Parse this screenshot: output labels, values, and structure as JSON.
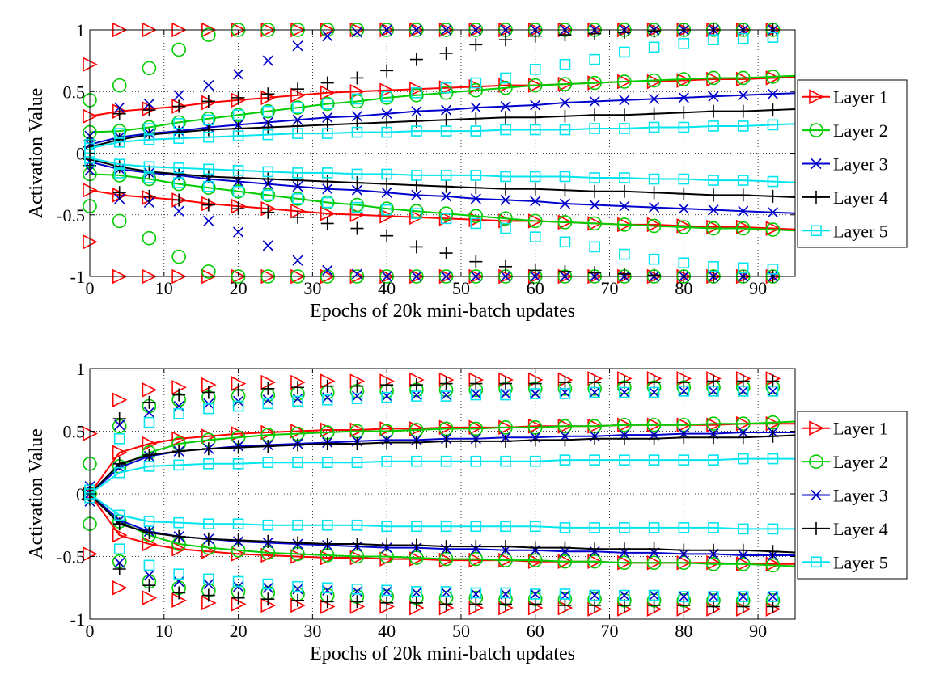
{
  "chart_data": [
    {
      "type": "line",
      "title": "",
      "xlabel": "Epochs of 20k mini-batch updates",
      "ylabel": "Activation Value",
      "xlim": [
        0,
        95
      ],
      "ylim": [
        -1,
        1
      ],
      "xticks": [
        "0",
        "10",
        "20",
        "30",
        "40",
        "50",
        "60",
        "70",
        "80",
        "90"
      ],
      "yticks": [
        "-1",
        "-0.5",
        "0",
        "0.5",
        "1"
      ],
      "grid": true,
      "legend_position": "right",
      "x": [
        0,
        4,
        8,
        12,
        16,
        20,
        24,
        28,
        32,
        36,
        40,
        44,
        48,
        52,
        56,
        60,
        64,
        68,
        72,
        76,
        80,
        84,
        88,
        92
      ],
      "series": [
        {
          "name": "Layer 1",
          "color": "#ff0000",
          "marker": "triangle-right",
          "mean": [
            0.3,
            0.34,
            0.36,
            0.38,
            0.41,
            0.43,
            0.45,
            0.47,
            0.49,
            0.5,
            0.51,
            0.52,
            0.53,
            0.54,
            0.55,
            0.55,
            0.56,
            0.57,
            0.58,
            0.58,
            0.59,
            0.6,
            0.6,
            0.61
          ],
          "p98": [
            0.72,
            1,
            1,
            1,
            1,
            1,
            1,
            1,
            1,
            1,
            1,
            1,
            1,
            1,
            1,
            1,
            1,
            1,
            1,
            1,
            1,
            1,
            1,
            1
          ]
        },
        {
          "name": "Layer 2",
          "color": "#00cc00",
          "marker": "circle",
          "mean": [
            0.17,
            0.18,
            0.21,
            0.25,
            0.28,
            0.31,
            0.34,
            0.37,
            0.4,
            0.42,
            0.45,
            0.47,
            0.49,
            0.51,
            0.53,
            0.55,
            0.56,
            0.57,
            0.58,
            0.59,
            0.6,
            0.61,
            0.61,
            0.62
          ],
          "p98": [
            0.43,
            0.55,
            0.69,
            0.84,
            0.96,
            1,
            1,
            1,
            1,
            1,
            1,
            1,
            1,
            1,
            1,
            1,
            1,
            1,
            1,
            1,
            1,
            1,
            1,
            1
          ]
        },
        {
          "name": "Layer 3",
          "color": "#0000cc",
          "marker": "x",
          "mean": [
            0.07,
            0.13,
            0.16,
            0.18,
            0.21,
            0.23,
            0.25,
            0.27,
            0.29,
            0.3,
            0.32,
            0.34,
            0.35,
            0.37,
            0.38,
            0.39,
            0.41,
            0.42,
            0.43,
            0.44,
            0.45,
            0.46,
            0.47,
            0.48
          ],
          "p98": [
            0.14,
            0.37,
            0.4,
            0.47,
            0.55,
            0.64,
            0.75,
            0.87,
            0.95,
            0.98,
            1,
            1,
            1,
            1,
            1,
            1,
            1,
            1,
            1,
            1,
            1,
            1,
            1,
            1
          ]
        },
        {
          "name": "Layer 4",
          "color": "#000000",
          "marker": "plus",
          "mean": [
            0.05,
            0.11,
            0.15,
            0.17,
            0.19,
            0.2,
            0.21,
            0.22,
            0.23,
            0.24,
            0.25,
            0.26,
            0.27,
            0.28,
            0.29,
            0.29,
            0.3,
            0.31,
            0.31,
            0.32,
            0.33,
            0.34,
            0.34,
            0.35
          ],
          "p98": [
            0.1,
            0.32,
            0.35,
            0.38,
            0.42,
            0.45,
            0.48,
            0.52,
            0.57,
            0.61,
            0.67,
            0.76,
            0.81,
            0.88,
            0.92,
            0.95,
            0.96,
            0.97,
            0.98,
            0.99,
            1,
            1,
            1,
            1
          ]
        },
        {
          "name": "Layer 5",
          "color": "#00e5ee",
          "marker": "square",
          "mean": [
            0.04,
            0.09,
            0.11,
            0.12,
            0.13,
            0.14,
            0.15,
            0.16,
            0.16,
            0.17,
            0.17,
            0.18,
            0.18,
            0.18,
            0.19,
            0.19,
            0.19,
            0.2,
            0.2,
            0.21,
            0.21,
            0.22,
            0.22,
            0.23
          ],
          "p98": [
            0.07,
            0.16,
            0.2,
            0.24,
            0.27,
            0.31,
            0.34,
            0.37,
            0.4,
            0.44,
            0.46,
            0.49,
            0.53,
            0.57,
            0.61,
            0.68,
            0.72,
            0.76,
            0.82,
            0.86,
            0.89,
            0.92,
            0.93,
            0.94
          ]
        }
      ]
    },
    {
      "type": "line",
      "title": "",
      "xlabel": "Epochs of 20k mini-batch updates",
      "ylabel": "Activation Value",
      "xlim": [
        0,
        95
      ],
      "ylim": [
        -1,
        1
      ],
      "xticks": [
        "0",
        "10",
        "20",
        "30",
        "40",
        "50",
        "60",
        "70",
        "80",
        "90"
      ],
      "yticks": [
        "-1",
        "-0.5",
        "0",
        "0.5",
        "1"
      ],
      "grid": true,
      "legend_position": "right",
      "x": [
        0,
        4,
        8,
        12,
        16,
        20,
        24,
        28,
        32,
        36,
        40,
        44,
        48,
        52,
        56,
        60,
        64,
        68,
        72,
        76,
        80,
        84,
        88,
        92
      ],
      "series": [
        {
          "name": "Layer 1",
          "color": "#ff0000",
          "marker": "triangle-right",
          "mean": [
            0.0,
            0.33,
            0.4,
            0.44,
            0.46,
            0.48,
            0.49,
            0.5,
            0.51,
            0.51,
            0.52,
            0.52,
            0.53,
            0.53,
            0.53,
            0.54,
            0.54,
            0.54,
            0.55,
            0.55,
            0.55,
            0.55,
            0.56,
            0.56
          ],
          "p98": [
            0.48,
            0.75,
            0.83,
            0.85,
            0.87,
            0.88,
            0.89,
            0.89,
            0.9,
            0.9,
            0.9,
            0.91,
            0.91,
            0.91,
            0.91,
            0.91,
            0.91,
            0.92,
            0.92,
            0.92,
            0.92,
            0.92,
            0.92,
            0.92
          ]
        },
        {
          "name": "Layer 2",
          "color": "#00cc00",
          "marker": "circle",
          "mean": [
            0.0,
            0.22,
            0.33,
            0.4,
            0.43,
            0.45,
            0.47,
            0.48,
            0.49,
            0.5,
            0.5,
            0.51,
            0.52,
            0.52,
            0.53,
            0.53,
            0.54,
            0.54,
            0.55,
            0.55,
            0.55,
            0.56,
            0.56,
            0.57
          ],
          "p98": [
            0.24,
            0.54,
            0.7,
            0.75,
            0.77,
            0.78,
            0.79,
            0.8,
            0.81,
            0.82,
            0.82,
            0.83,
            0.83,
            0.83,
            0.84,
            0.84,
            0.84,
            0.84,
            0.85,
            0.85,
            0.85,
            0.85,
            0.85,
            0.85
          ]
        },
        {
          "name": "Layer 3",
          "color": "#0000cc",
          "marker": "x",
          "mean": [
            0.0,
            0.21,
            0.3,
            0.34,
            0.36,
            0.38,
            0.39,
            0.4,
            0.41,
            0.42,
            0.43,
            0.43,
            0.44,
            0.44,
            0.45,
            0.45,
            0.46,
            0.46,
            0.47,
            0.47,
            0.48,
            0.48,
            0.49,
            0.49
          ],
          "p98": [
            0.06,
            0.55,
            0.65,
            0.7,
            0.72,
            0.74,
            0.75,
            0.76,
            0.77,
            0.78,
            0.78,
            0.79,
            0.79,
            0.8,
            0.8,
            0.8,
            0.81,
            0.81,
            0.81,
            0.81,
            0.82,
            0.82,
            0.82,
            0.82
          ]
        },
        {
          "name": "Layer 4",
          "color": "#000000",
          "marker": "plus",
          "mean": [
            0.0,
            0.24,
            0.31,
            0.34,
            0.36,
            0.37,
            0.38,
            0.39,
            0.4,
            0.4,
            0.41,
            0.41,
            0.42,
            0.42,
            0.42,
            0.43,
            0.43,
            0.44,
            0.44,
            0.44,
            0.45,
            0.45,
            0.45,
            0.46
          ],
          "p98": [
            0.04,
            0.6,
            0.73,
            0.79,
            0.81,
            0.83,
            0.84,
            0.85,
            0.86,
            0.86,
            0.87,
            0.87,
            0.88,
            0.88,
            0.88,
            0.88,
            0.89,
            0.89,
            0.89,
            0.89,
            0.89,
            0.9,
            0.9,
            0.9
          ]
        },
        {
          "name": "Layer 5",
          "color": "#00e5ee",
          "marker": "square",
          "mean": [
            0.0,
            0.17,
            0.22,
            0.23,
            0.24,
            0.24,
            0.25,
            0.25,
            0.25,
            0.25,
            0.26,
            0.26,
            0.26,
            0.26,
            0.26,
            0.26,
            0.27,
            0.27,
            0.27,
            0.27,
            0.27,
            0.27,
            0.28,
            0.28
          ],
          "p98": [
            0.03,
            0.44,
            0.57,
            0.64,
            0.68,
            0.7,
            0.72,
            0.74,
            0.75,
            0.76,
            0.77,
            0.78,
            0.78,
            0.79,
            0.79,
            0.8,
            0.8,
            0.81,
            0.81,
            0.81,
            0.82,
            0.82,
            0.82,
            0.82
          ]
        }
      ]
    }
  ]
}
